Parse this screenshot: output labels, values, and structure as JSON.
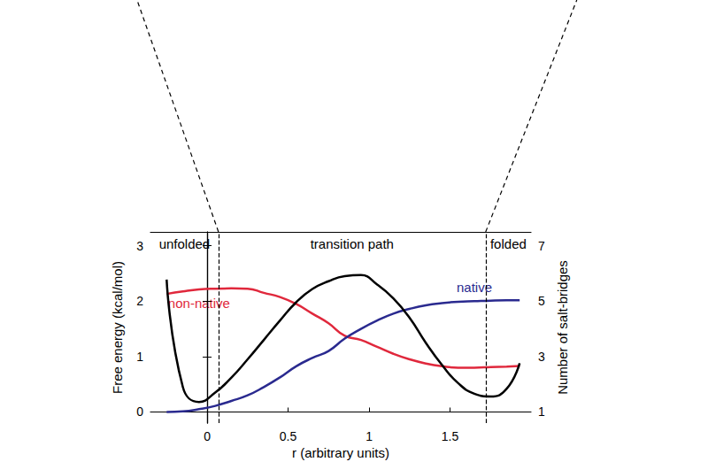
{
  "chart_data": {
    "type": "line",
    "x_label": "r (arbitrary units)",
    "y_label": "Free energy (kcal/mol)",
    "y2_label": "Number of salt-bridges",
    "x": [
      -0.25,
      -0.15,
      -0.05,
      0.05,
      0.15,
      0.25,
      0.35,
      0.45,
      0.55,
      0.65,
      0.75,
      0.85,
      0.95,
      1.05,
      1.15,
      1.25,
      1.35,
      1.45,
      1.55,
      1.65,
      1.75,
      1.85,
      1.93
    ],
    "xlim": [
      -0.35,
      2.0
    ],
    "xticks": [
      0,
      0.5,
      1,
      1.5
    ],
    "ylim": [
      -0.2,
      3.25
    ],
    "yticks": [
      0,
      1,
      2,
      3
    ],
    "y2lim": [
      0.6,
      7.5
    ],
    "y2ticks": [
      1,
      3,
      5,
      7
    ],
    "boundaries": [
      0.07,
      1.72
    ],
    "annotations": [
      "unfolded",
      "transition path",
      "folded"
    ],
    "series": [
      {
        "color": "#000000",
        "values": [
          2.39,
          0.45,
          0.18,
          0.35,
          0.62,
          0.95,
          1.3,
          1.65,
          1.98,
          2.22,
          2.36,
          2.45,
          2.47,
          2.3,
          2.05,
          1.7,
          1.25,
          0.85,
          0.52,
          0.33,
          0.28,
          0.42,
          0.88
        ]
      },
      {
        "name": "non-native",
        "color": "#e0283c",
        "axis": "y2",
        "values": [
          5.26,
          5.35,
          5.42,
          5.45,
          5.46,
          5.45,
          5.3,
          5.15,
          4.9,
          4.55,
          4.2,
          3.75,
          3.6,
          3.35,
          3.1,
          2.9,
          2.75,
          2.65,
          2.6,
          2.6,
          2.62,
          2.64,
          2.66
        ]
      },
      {
        "name": "native",
        "color": "#2a2a8f",
        "axis": "y2",
        "values": [
          1.0,
          1.02,
          1.1,
          1.22,
          1.4,
          1.6,
          1.9,
          2.25,
          2.65,
          2.95,
          3.2,
          3.65,
          4.0,
          4.3,
          4.55,
          4.72,
          4.85,
          4.93,
          4.98,
          5.0,
          5.02,
          5.03,
          5.03
        ]
      }
    ]
  }
}
